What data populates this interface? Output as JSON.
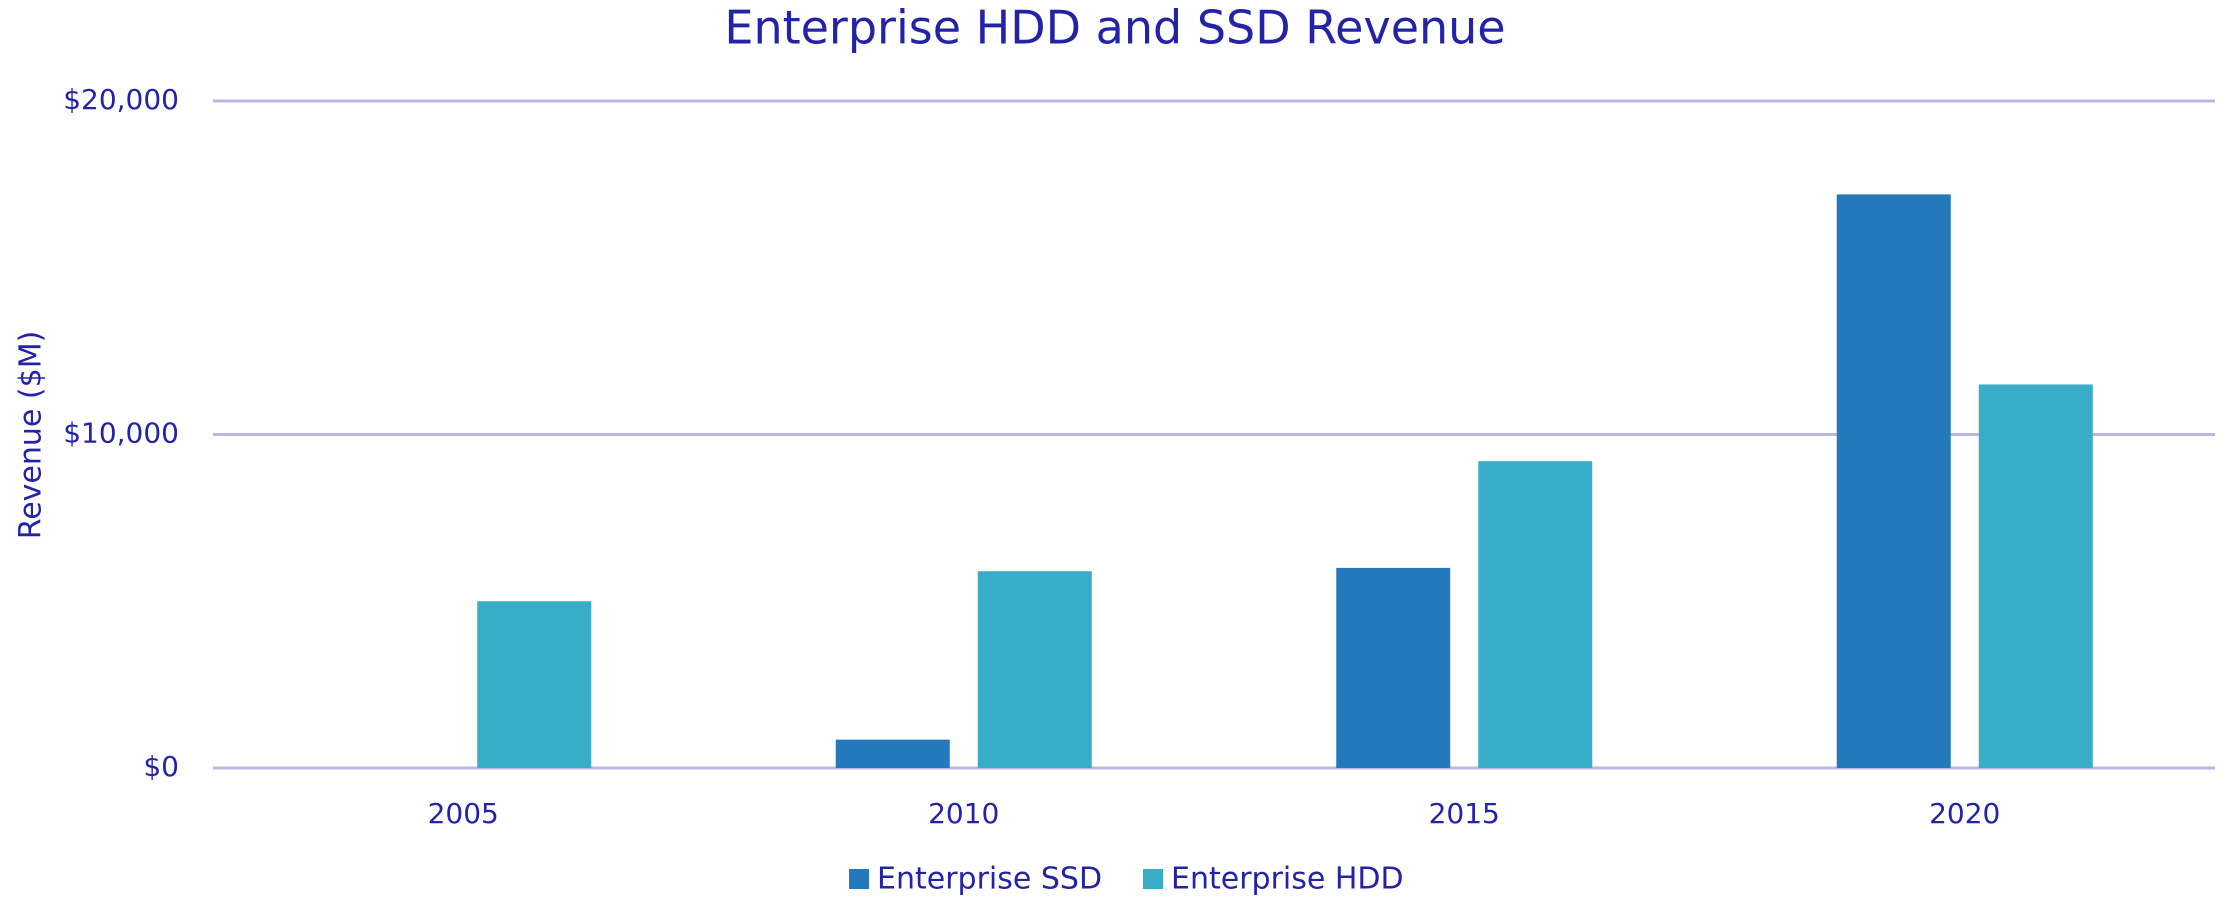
{
  "chart_data": {
    "type": "bar",
    "title": "Enterprise HDD and SSD Revenue",
    "y_label": "Revenue ($M)",
    "categories": [
      "2005",
      "2010",
      "2015",
      "2020"
    ],
    "series": [
      {
        "name": "Enterprise SSD",
        "color": "#2479bd",
        "values": [
          0,
          850,
          6000,
          17200
        ]
      },
      {
        "name": "Enterprise HDD",
        "color": "#37adc7",
        "values": [
          5000,
          5900,
          9200,
          11500
        ]
      }
    ],
    "ylim": [
      0,
      20000
    ],
    "yticks": [
      {
        "value": 0,
        "label": "$0"
      },
      {
        "value": 10000,
        "label": "$10,000"
      },
      {
        "value": 20000,
        "label": "$20,000"
      }
    ],
    "grid": true,
    "legend": "bottom"
  }
}
